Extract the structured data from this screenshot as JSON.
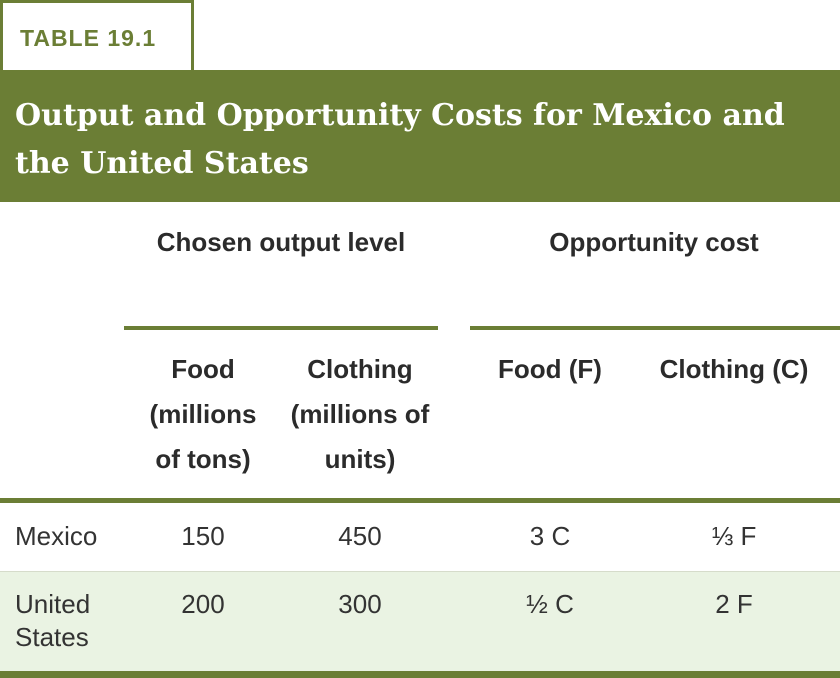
{
  "table": {
    "label": "TABLE 19.1",
    "title": "Output and Opportunity Costs for Mexico and the United States",
    "group_headers": {
      "chosen_output": "Chosen output level",
      "opportunity_cost": "Opportunity cost"
    },
    "columns": {
      "food_output": "Food (millions of tons)",
      "clothing_output": "Clothing (millions of units)",
      "food_cost": "Food (F)",
      "clothing_cost": "Clothing (C)"
    },
    "rows": [
      {
        "country": "Mexico",
        "food": "150",
        "clothing": "450",
        "food_cost": "3 C",
        "clothing_cost": "⅓ F"
      },
      {
        "country": "United States",
        "food": "200",
        "clothing": "300",
        "food_cost": "½ C",
        "clothing_cost": "2 F"
      }
    ],
    "colors": {
      "accent": "#6b7e35",
      "row_shade": "#eaf3e3",
      "text": "#333333"
    }
  }
}
